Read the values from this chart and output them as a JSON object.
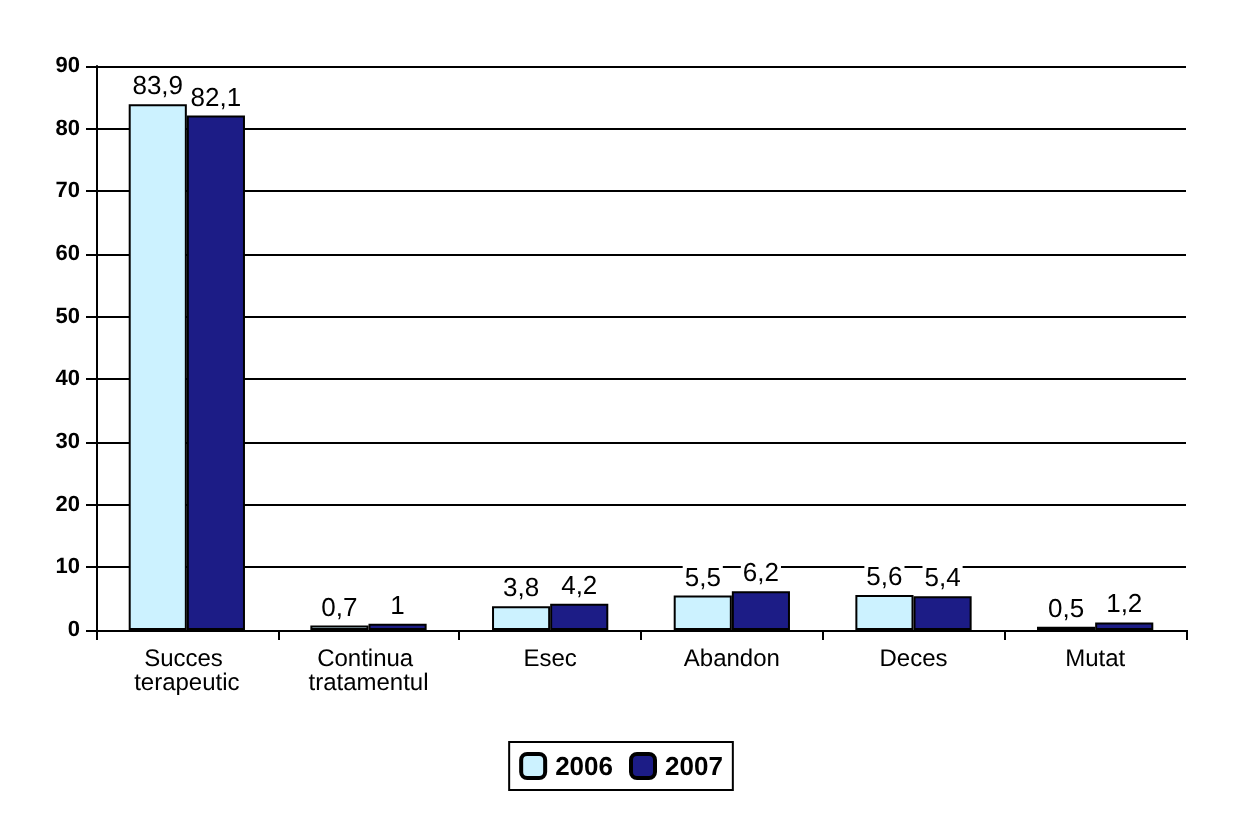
{
  "chart_data": {
    "type": "bar",
    "categories": [
      "Succes terapeutic",
      "Continua tratamentul",
      "Esec",
      "Abandon",
      "Deces",
      "Mutat"
    ],
    "series": [
      {
        "name": "2006",
        "color": "#ccf2ff",
        "values": [
          83.9,
          0.7,
          3.8,
          5.5,
          5.6,
          0.5
        ],
        "value_labels": [
          "83,9",
          "0,7",
          "3,8",
          "5,5",
          "5,6",
          "0,5"
        ]
      },
      {
        "name": "2007",
        "color": "#1c1c86",
        "values": [
          82.1,
          1,
          4.2,
          6.2,
          5.4,
          1.2
        ],
        "value_labels": [
          "82,1",
          "1",
          "4,2",
          "6,2",
          "5,4",
          "1,2"
        ]
      }
    ],
    "ylim": [
      0,
      90
    ],
    "yticks": [
      0,
      10,
      20,
      30,
      40,
      50,
      60,
      70,
      80,
      90
    ],
    "grid": "y",
    "legend": "bottom"
  }
}
